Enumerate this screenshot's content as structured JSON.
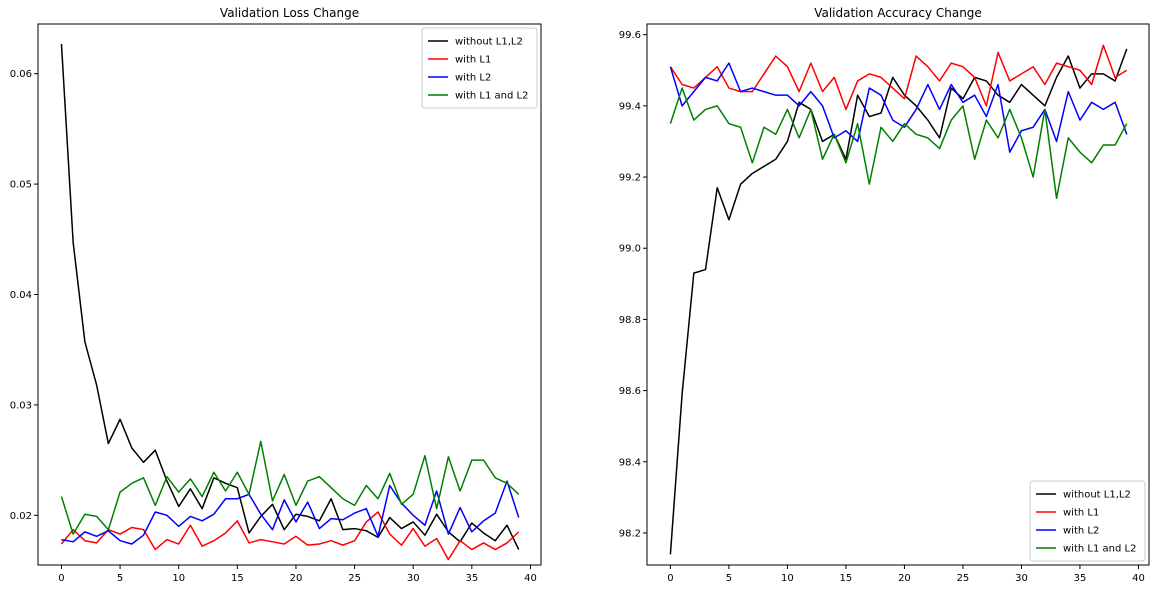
{
  "chart_data": [
    {
      "type": "line",
      "title": "Validation Loss Change",
      "xlabel": "",
      "ylabel": "",
      "xlim": [
        -2,
        40.9
      ],
      "ylim": [
        0.0155,
        0.0645
      ],
      "x_ticks": [
        0,
        5,
        10,
        15,
        20,
        25,
        30,
        35,
        40
      ],
      "y_ticks": [
        0.02,
        0.03,
        0.04,
        0.05,
        0.06
      ],
      "y_tick_labels": [
        "0.02",
        "0.03",
        "0.04",
        "0.05",
        "0.06"
      ],
      "legend_position": "upper right",
      "grid": false,
      "x": [
        0,
        1,
        2,
        3,
        4,
        5,
        6,
        7,
        8,
        9,
        10,
        11,
        12,
        13,
        14,
        15,
        16,
        17,
        18,
        19,
        20,
        21,
        22,
        23,
        24,
        25,
        26,
        27,
        28,
        29,
        30,
        31,
        32,
        33,
        34,
        35,
        36,
        37,
        38,
        39
      ],
      "series": [
        {
          "name": "without L1,L2",
          "color": "#000000",
          "values": [
            0.0627,
            0.0447,
            0.0357,
            0.0318,
            0.0265,
            0.0287,
            0.0261,
            0.0248,
            0.0259,
            0.0231,
            0.0208,
            0.0224,
            0.0206,
            0.0234,
            0.0229,
            0.0225,
            0.0184,
            0.0199,
            0.021,
            0.0187,
            0.0201,
            0.0199,
            0.0195,
            0.0215,
            0.0187,
            0.0188,
            0.0186,
            0.018,
            0.0198,
            0.0188,
            0.0194,
            0.0182,
            0.0201,
            0.0185,
            0.0176,
            0.0193,
            0.0184,
            0.0177,
            0.0191,
            0.0169
          ]
        },
        {
          "name": "with L1",
          "color": "#ff0000",
          "values": [
            0.0174,
            0.0187,
            0.0177,
            0.0175,
            0.0187,
            0.0183,
            0.0189,
            0.0187,
            0.0169,
            0.0178,
            0.0174,
            0.0191,
            0.0172,
            0.0177,
            0.0184,
            0.0195,
            0.0175,
            0.0178,
            0.0176,
            0.0174,
            0.0181,
            0.0173,
            0.0174,
            0.0177,
            0.0173,
            0.0177,
            0.0194,
            0.0203,
            0.0183,
            0.0173,
            0.0188,
            0.0172,
            0.0179,
            0.016,
            0.0177,
            0.0169,
            0.0175,
            0.0169,
            0.0175,
            0.0185
          ]
        },
        {
          "name": "with L2",
          "color": "#0000ff",
          "values": [
            0.0178,
            0.0176,
            0.0185,
            0.0181,
            0.0186,
            0.0177,
            0.0174,
            0.0182,
            0.0203,
            0.02,
            0.019,
            0.0199,
            0.0195,
            0.0201,
            0.0215,
            0.0215,
            0.0219,
            0.0201,
            0.0187,
            0.0214,
            0.0194,
            0.0212,
            0.0188,
            0.0197,
            0.0196,
            0.0202,
            0.0206,
            0.0181,
            0.0227,
            0.0211,
            0.02,
            0.0191,
            0.0222,
            0.0183,
            0.0207,
            0.0185,
            0.0195,
            0.0202,
            0.0231,
            0.0198
          ]
        },
        {
          "name": "with L1 and L2",
          "color": "#008000",
          "values": [
            0.0217,
            0.0183,
            0.0201,
            0.0199,
            0.0187,
            0.0221,
            0.0229,
            0.0234,
            0.0209,
            0.0235,
            0.0221,
            0.0233,
            0.0217,
            0.0239,
            0.0222,
            0.0239,
            0.0219,
            0.0267,
            0.0213,
            0.0237,
            0.0209,
            0.0231,
            0.0235,
            0.0225,
            0.0215,
            0.0209,
            0.0227,
            0.0215,
            0.0238,
            0.021,
            0.0219,
            0.0254,
            0.0206,
            0.0253,
            0.0222,
            0.025,
            0.025,
            0.0234,
            0.0229,
            0.0219
          ]
        }
      ]
    },
    {
      "type": "line",
      "title": "Validation Accuracy Change",
      "xlabel": "",
      "ylabel": "",
      "xlim": [
        -2,
        40.9
      ],
      "ylim": [
        98.11,
        99.63
      ],
      "x_ticks": [
        0,
        5,
        10,
        15,
        20,
        25,
        30,
        35,
        40
      ],
      "y_ticks": [
        98.2,
        98.4,
        98.6,
        98.8,
        99.0,
        99.2,
        99.4,
        99.6
      ],
      "y_tick_labels": [
        "98.2",
        "98.4",
        "98.6",
        "98.8",
        "99.0",
        "99.2",
        "99.4",
        "99.6"
      ],
      "legend_position": "lower right",
      "grid": false,
      "x": [
        0,
        1,
        2,
        3,
        4,
        5,
        6,
        7,
        8,
        9,
        10,
        11,
        12,
        13,
        14,
        15,
        16,
        17,
        18,
        19,
        20,
        21,
        22,
        23,
        24,
        25,
        26,
        27,
        28,
        29,
        30,
        31,
        32,
        33,
        34,
        35,
        36,
        37,
        38,
        39
      ],
      "series": [
        {
          "name": "without L1,L2",
          "color": "#000000",
          "values": [
            98.14,
            98.59,
            98.93,
            98.94,
            99.17,
            99.08,
            99.18,
            99.21,
            99.23,
            99.25,
            99.3,
            99.41,
            99.39,
            99.3,
            99.32,
            99.25,
            99.43,
            99.37,
            99.38,
            99.48,
            99.43,
            99.4,
            99.36,
            99.31,
            99.45,
            99.42,
            99.48,
            99.47,
            99.43,
            99.41,
            99.46,
            99.43,
            99.4,
            99.48,
            99.54,
            99.45,
            99.49,
            99.49,
            99.47,
            99.56
          ]
        },
        {
          "name": "with L1",
          "color": "#ff0000",
          "values": [
            99.51,
            99.46,
            99.45,
            99.48,
            99.51,
            99.45,
            99.44,
            99.44,
            99.49,
            99.54,
            99.51,
            99.44,
            99.52,
            99.44,
            99.48,
            99.39,
            99.47,
            99.49,
            99.48,
            99.45,
            99.42,
            99.54,
            99.51,
            99.47,
            99.52,
            99.51,
            99.48,
            99.4,
            99.55,
            99.47,
            99.49,
            99.51,
            99.46,
            99.52,
            99.51,
            99.5,
            99.46,
            99.57,
            99.48,
            99.5
          ]
        },
        {
          "name": "with L2",
          "color": "#0000ff",
          "values": [
            99.51,
            99.4,
            99.44,
            99.48,
            99.47,
            99.52,
            99.44,
            99.45,
            99.44,
            99.43,
            99.43,
            99.4,
            99.44,
            99.4,
            99.31,
            99.33,
            99.3,
            99.45,
            99.43,
            99.36,
            99.34,
            99.39,
            99.46,
            99.39,
            99.46,
            99.41,
            99.43,
            99.37,
            99.46,
            99.27,
            99.33,
            99.34,
            99.39,
            99.3,
            99.44,
            99.36,
            99.41,
            99.39,
            99.41,
            99.32
          ]
        },
        {
          "name": "with L1 and L2",
          "color": "#008000",
          "values": [
            99.35,
            99.45,
            99.36,
            99.39,
            99.4,
            99.35,
            99.34,
            99.24,
            99.34,
            99.32,
            99.39,
            99.31,
            99.39,
            99.25,
            99.32,
            99.24,
            99.35,
            99.18,
            99.34,
            99.3,
            99.35,
            99.32,
            99.31,
            99.28,
            99.36,
            99.4,
            99.25,
            99.36,
            99.31,
            99.39,
            99.31,
            99.2,
            99.39,
            99.14,
            99.31,
            99.27,
            99.24,
            99.29,
            99.29,
            99.35
          ]
        }
      ]
    }
  ]
}
